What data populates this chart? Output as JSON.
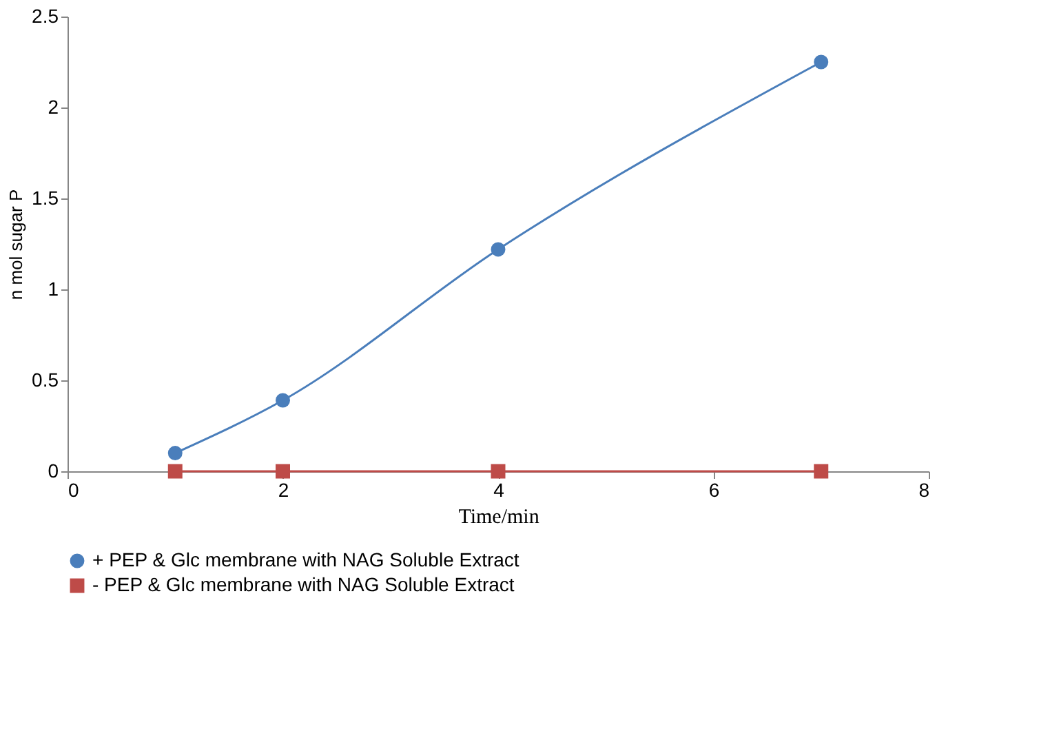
{
  "chart_data": {
    "type": "line",
    "xlabel": "Time/min",
    "ylabel": "n mol sugar P",
    "x": [
      1,
      2,
      4,
      7
    ],
    "series": [
      {
        "name": "+ PEP & Glc  membrane  with NAG Soluble Extract",
        "color": "#4a7ebb",
        "marker": "circle",
        "values": [
          0.1,
          0.39,
          1.22,
          2.25
        ]
      },
      {
        "name": "- PEP & Glc  membrane  with NAG Soluble Extract",
        "color": "#be4b48",
        "marker": "square",
        "values": [
          0,
          0,
          0,
          0
        ]
      }
    ],
    "xlim": [
      0,
      8
    ],
    "xticks": [
      0,
      2,
      4,
      6,
      8
    ],
    "ylim": [
      0,
      2.5
    ],
    "yticks": [
      0,
      0.5,
      1,
      1.5,
      2,
      2.5
    ],
    "grid": false,
    "legend": "bottom",
    "line_style": "solid"
  }
}
